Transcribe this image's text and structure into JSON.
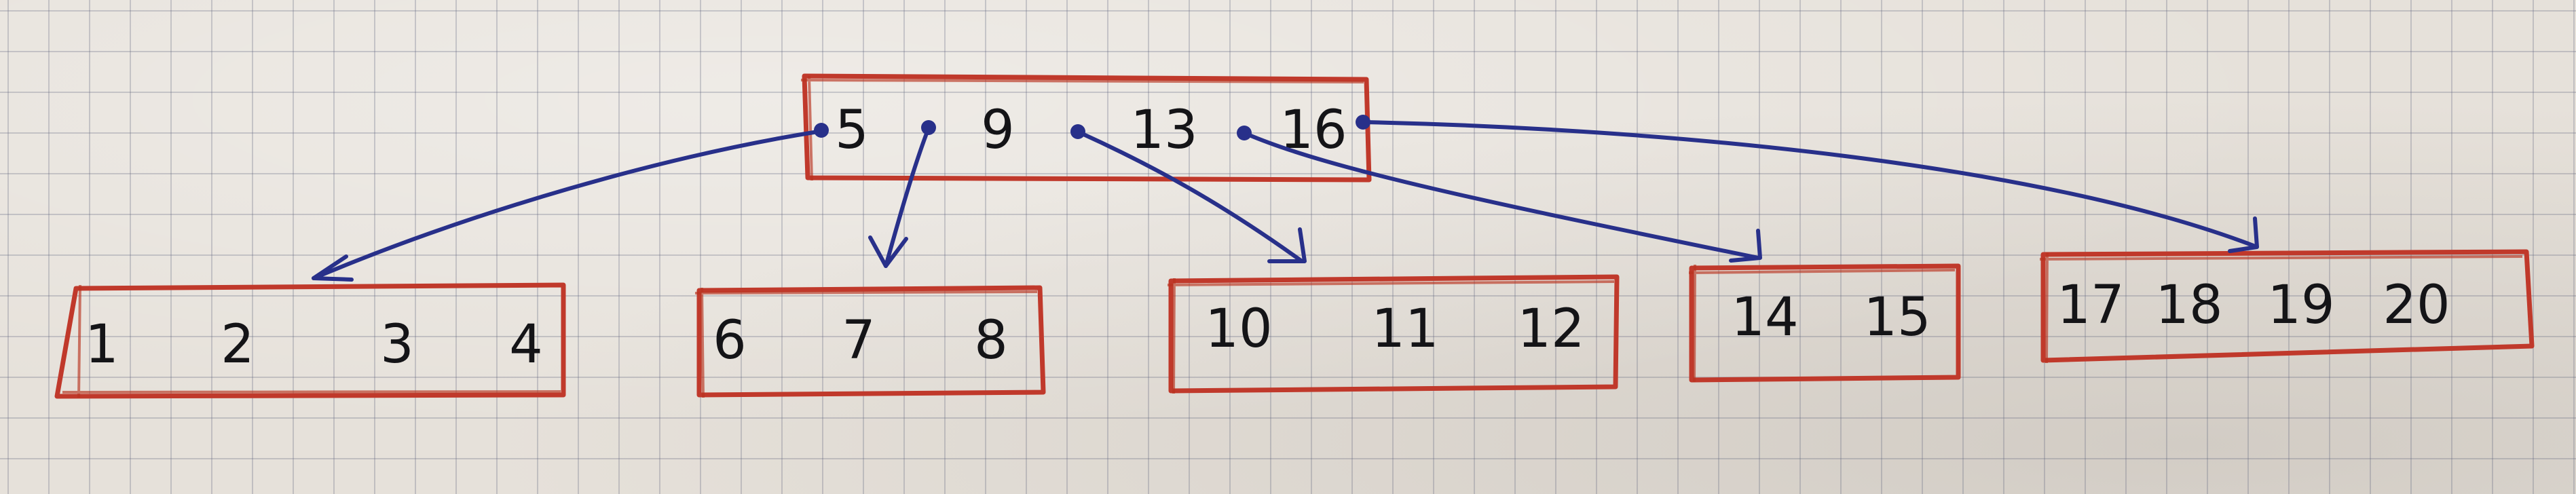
{
  "tree": {
    "root": {
      "keys": [
        "5",
        "9",
        "13",
        "16"
      ]
    },
    "children": [
      {
        "keys": [
          "1",
          "2",
          "3",
          "4"
        ]
      },
      {
        "keys": [
          "6",
          "7",
          "8"
        ]
      },
      {
        "keys": [
          "10",
          "11",
          "12"
        ]
      },
      {
        "keys": [
          "14",
          "15"
        ]
      },
      {
        "keys": [
          "17",
          "18",
          "19",
          "20"
        ]
      }
    ]
  },
  "colors": {
    "node_outline": "#c0392b",
    "pointer_ink": "#28308a",
    "key_ink": "#141417",
    "paper": "#e6e1da",
    "grid": "#5f647d"
  }
}
